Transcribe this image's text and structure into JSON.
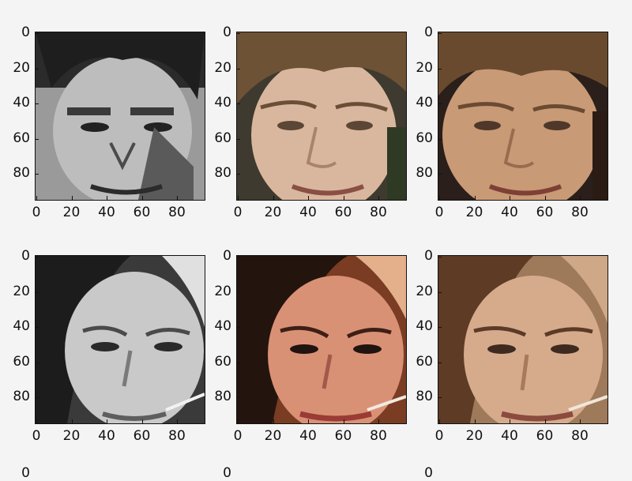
{
  "figure": {
    "panels": [
      {
        "row": 0,
        "col": 0,
        "subject": "male face",
        "style": "grayscale posterized",
        "colors": {
          "bg": "#9a9a9a",
          "skin": "#bdbdbd",
          "hair": "#2b2b2b",
          "shadow": "#5a5a5a"
        }
      },
      {
        "row": 0,
        "col": 1,
        "subject": "male face",
        "style": "original color",
        "colors": {
          "bg": "#3e3a2f",
          "skin": "#d9b79e",
          "hair": "#6e5236",
          "shadow": "#a9836a"
        }
      },
      {
        "row": 0,
        "col": 2,
        "subject": "male face",
        "style": "reconstructed color",
        "colors": {
          "bg": "#2a1f1a",
          "skin": "#c89a76",
          "hair": "#6a4a2f",
          "shadow": "#9a6c4f"
        }
      },
      {
        "row": 1,
        "col": 0,
        "subject": "female face",
        "style": "grayscale posterized",
        "colors": {
          "bg": "#3a3a3a",
          "skin": "#c9c9c9",
          "hair": "#1c1c1c",
          "shadow": "#7a7a7a"
        }
      },
      {
        "row": 1,
        "col": 1,
        "subject": "female face",
        "style": "original color",
        "colors": {
          "bg": "#7a3c22",
          "skin": "#d99175",
          "hair": "#24140e",
          "shadow": "#a4584a"
        }
      },
      {
        "row": 1,
        "col": 2,
        "subject": "female face",
        "style": "reconstructed color",
        "colors": {
          "bg": "#9f7a5a",
          "skin": "#d6ab8c",
          "hair": "#5e3b25",
          "shadow": "#a87a5b"
        }
      }
    ],
    "y_ticks": [
      "0",
      "20",
      "40",
      "60",
      "80"
    ],
    "x_ticks": [
      "0",
      "20",
      "40",
      "60",
      "80"
    ],
    "partial_row_ticks": [
      "0",
      "0",
      "0"
    ]
  }
}
